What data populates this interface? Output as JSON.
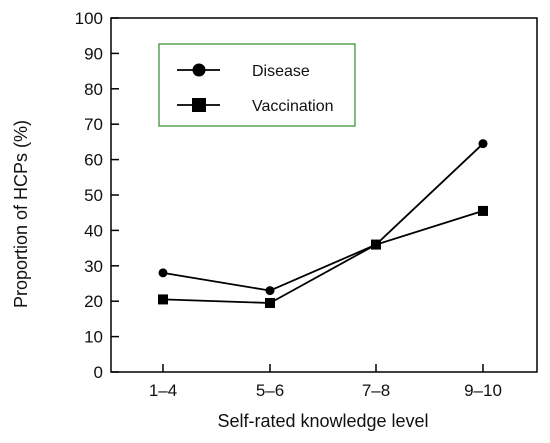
{
  "chart_data": {
    "type": "line",
    "title": "",
    "xlabel": "Self-rated knowledge level",
    "ylabel": "Proportion of HCPs (%)",
    "categories": [
      "1–4",
      "5–6",
      "7–8",
      "9–10"
    ],
    "ylim": [
      0,
      100
    ],
    "yticks": [
      0,
      10,
      20,
      30,
      40,
      50,
      60,
      70,
      80,
      90,
      100
    ],
    "grid": false,
    "legend_position": "top-left",
    "series": [
      {
        "name": "Disease",
        "marker": "circle",
        "values": [
          28,
          23,
          36,
          64.5
        ]
      },
      {
        "name": "Vaccination",
        "marker": "square",
        "values": [
          20.5,
          19.5,
          36,
          45.5
        ]
      }
    ],
    "colors": {
      "line": "#000000",
      "legend_border": "#2e8b2e"
    }
  }
}
